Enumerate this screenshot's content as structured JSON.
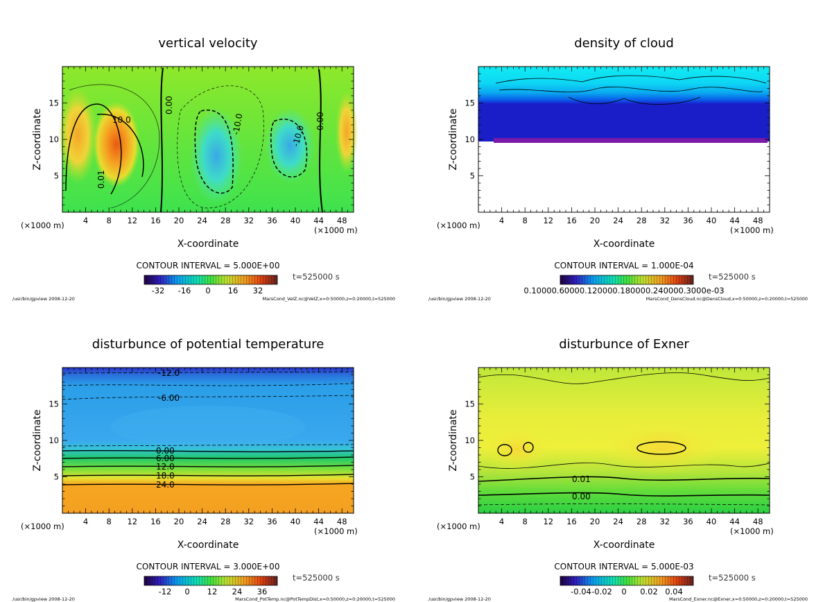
{
  "panels": [
    {
      "title": "vertical velocity",
      "xlabel": "X-coordinate",
      "ylabel": "Z-coordinate",
      "x_unit": "(×1000 m)",
      "y_unit": "(×1000 m)",
      "contour_interval": "CONTOUR INTERVAL = 5.000E+00",
      "time": "t=525000 s",
      "colorbar_ticks": [
        "-32",
        "-16",
        "0",
        "16",
        "32"
      ],
      "footer_left": "/usr/bin/gpview   2008-12-20",
      "footer_right": "MarsCond_VelZ.nc@VelZ,x=0:50000,z=0:20000,t=525000",
      "contour_labels": [
        "10.0",
        "0.00",
        "-10.0",
        "-10.0",
        "0.00",
        "0.01"
      ]
    },
    {
      "title": "density of cloud",
      "xlabel": "X-coordinate",
      "ylabel": "Z-coordinate",
      "x_unit": "(×1000 m)",
      "y_unit": "(×1000 m)",
      "contour_interval": "CONTOUR INTERVAL = 1.000E-04",
      "time": "t=525000 s",
      "colorbar_ticks": [
        "0.10000.60000.120000.180000.240000.3000e-03"
      ],
      "footer_left": "/usr/bin/gpview   2008-12-20",
      "footer_right": "MarsCond_DensCloud.nc@DensCloud,x=0:50000,z=0:20000,t=525000",
      "contour_labels": []
    },
    {
      "title": "disturbunce of potential temperature",
      "xlabel": "X-coordinate",
      "ylabel": "Z-coordinate",
      "x_unit": "(×1000 m)",
      "y_unit": "(×1000 m)",
      "contour_interval": "CONTOUR INTERVAL = 3.000E+00",
      "time": "t=525000 s",
      "colorbar_ticks": [
        "-12",
        "0",
        "12",
        "24",
        "36"
      ],
      "footer_left": "/usr/bin/gpview   2008-12-20",
      "footer_right": "MarsCond_PotTemp.nc@PotTempDist,x=0:50000,z=0:20000,t=525000",
      "contour_labels": [
        "-12.0",
        "-6.00",
        "0.00",
        "6.00",
        "12.0",
        "18.0",
        "24.0"
      ]
    },
    {
      "title": "disturbunce of Exner",
      "xlabel": "X-coordinate",
      "ylabel": "Z-coordinate",
      "x_unit": "(×1000 m)",
      "y_unit": "(×1000 m)",
      "contour_interval": "CONTOUR INTERVAL = 5.000E-03",
      "time": "t=525000 s",
      "colorbar_ticks": [
        "-0.04",
        "-0.02",
        "0",
        "0.02",
        "0.04"
      ],
      "footer_left": "/usr/bin/gpview   2008-12-20",
      "footer_right": "MarsCond_Exner.nc@Exner,x=0:50000,z=0:20000,t=525000",
      "contour_labels": [
        "0.01",
        "0.00"
      ]
    }
  ],
  "chart_data": [
    {
      "type": "heatmap",
      "title": "vertical velocity",
      "xlabel": "X-coordinate",
      "ylabel": "Z-coordinate",
      "xlim": [
        0,
        50
      ],
      "ylim": [
        0,
        20
      ],
      "xticks": [
        4,
        8,
        12,
        16,
        20,
        24,
        28,
        32,
        36,
        40,
        44,
        48
      ],
      "yticks": [
        5,
        10,
        15
      ],
      "color_range": [
        -40,
        40
      ],
      "features": [
        {
          "x": 3,
          "z": 9.5,
          "value": 22
        },
        {
          "x": 9,
          "z": 8.5,
          "value": 30
        },
        {
          "x": 27,
          "z": 7,
          "value": -15
        },
        {
          "x": 40,
          "z": 9,
          "value": -12
        },
        {
          "x": 49,
          "z": 12,
          "value": 14
        }
      ]
    },
    {
      "type": "heatmap",
      "title": "density of cloud",
      "xlabel": "X-coordinate",
      "ylabel": "Z-coordinate",
      "xlim": [
        0,
        50
      ],
      "ylim": [
        0,
        20
      ],
      "xticks": [
        4,
        8,
        12,
        16,
        20,
        24,
        28,
        32,
        36,
        40,
        44,
        48
      ],
      "yticks": [
        5,
        10,
        15
      ],
      "cloud_base_z": 9.8,
      "color_range": [
        0.0001,
        0.0003
      ]
    },
    {
      "type": "heatmap",
      "title": "disturbunce of potential temperature",
      "xlabel": "X-coordinate",
      "ylabel": "Z-coordinate",
      "xlim": [
        0,
        50
      ],
      "ylim": [
        0,
        20
      ],
      "xticks": [
        4,
        8,
        12,
        16,
        20,
        24,
        28,
        32,
        36,
        40,
        44,
        48
      ],
      "yticks": [
        5,
        10,
        15
      ],
      "color_range": [
        -18,
        42
      ],
      "profile": [
        {
          "z": 19.5,
          "value": -13
        },
        {
          "z": 19,
          "value": -12
        },
        {
          "z": 16,
          "value": -6
        },
        {
          "z": 12,
          "value": -4
        },
        {
          "z": 9.5,
          "value": -1
        },
        {
          "z": 8.5,
          "value": 2
        },
        {
          "z": 7,
          "value": 10
        },
        {
          "z": 6,
          "value": 14
        },
        {
          "z": 5,
          "value": 19
        },
        {
          "z": 4.2,
          "value": 25
        },
        {
          "z": 0,
          "value": 27
        }
      ]
    },
    {
      "type": "heatmap",
      "title": "disturbunce of Exner",
      "xlabel": "X-coordinate",
      "ylabel": "Z-coordinate",
      "xlim": [
        0,
        50
      ],
      "ylim": [
        0,
        20
      ],
      "xticks": [
        4,
        8,
        12,
        16,
        20,
        24,
        28,
        32,
        36,
        40,
        44,
        48
      ],
      "yticks": [
        5,
        10,
        15
      ],
      "color_range": [
        -0.05,
        0.05
      ],
      "features": [
        {
          "x": 4.5,
          "z": 8.8,
          "value": 0.03
        },
        {
          "x": 8.5,
          "z": 9.2,
          "value": 0.03
        },
        {
          "x": 32,
          "z": 9.2,
          "value": 0.032
        }
      ]
    }
  ]
}
